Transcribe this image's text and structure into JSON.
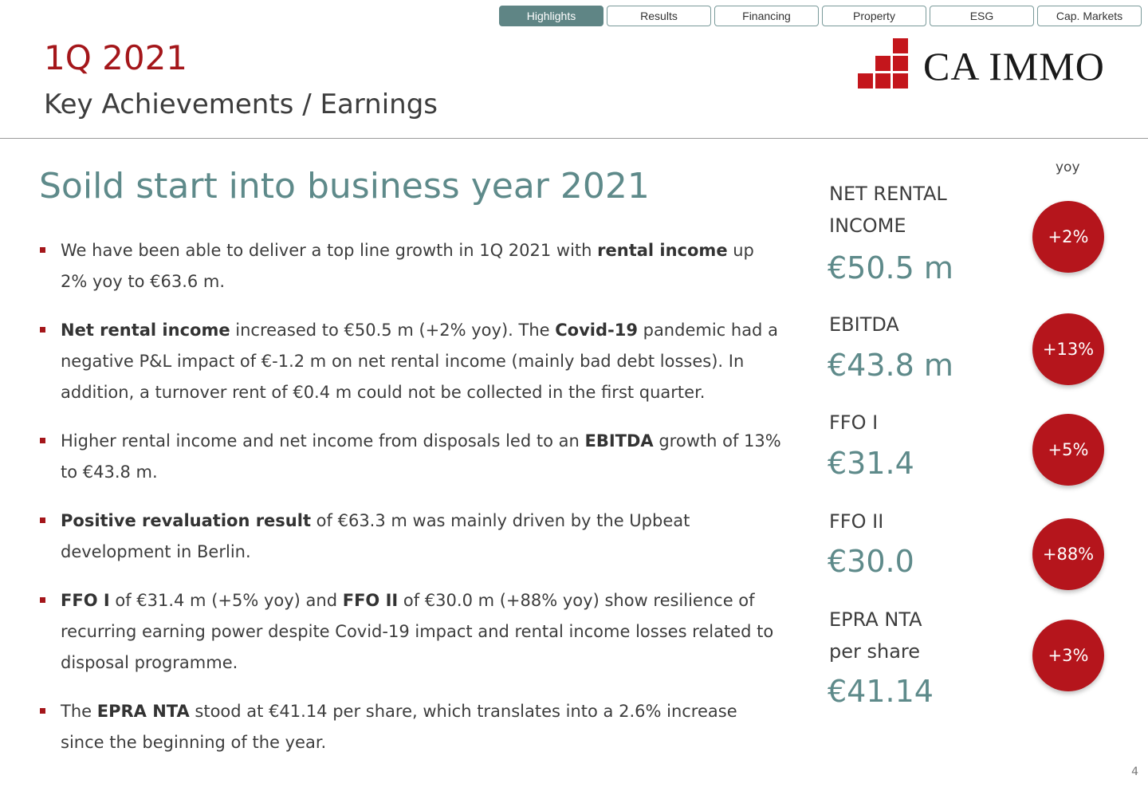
{
  "nav": {
    "tabs": [
      "Highlights",
      "Results",
      "Financing",
      "Property",
      "ESG",
      "Cap. Markets"
    ],
    "active": "Highlights"
  },
  "header": {
    "year": "1Q 2021",
    "subtitle": "Key Achievements / Earnings",
    "logo_text": "CA IMMO"
  },
  "headline": "Soild start into business year 2021",
  "bullets": [
    [
      {
        "t": "We have been able to deliver a top line growth in 1Q 2021 with "
      },
      {
        "t": "rental income",
        "b": true
      },
      {
        "t": " up 2% yoy to €63.6 m."
      }
    ],
    [
      {
        "t": "Net rental income",
        "b": true
      },
      {
        "t": " increased to €50.5 m (+2% yoy). The "
      },
      {
        "t": "Covid-19",
        "b": true
      },
      {
        "t": " pandemic had a negative P&L impact of €-1.2 m on net rental income (mainly bad debt losses). In addition, a turnover rent of €0.4 m could not be collected in the first quarter."
      }
    ],
    [
      {
        "t": "Higher rental income and net income from disposals led to an "
      },
      {
        "t": "EBITDA",
        "b": true
      },
      {
        "t": " growth of 13% to €43.8 m."
      }
    ],
    [
      {
        "t": "Positive revaluation result",
        "b": true
      },
      {
        "t": " of €63.3 m was mainly driven by the Upbeat development in Berlin."
      }
    ],
    [
      {
        "t": "FFO I",
        "b": true
      },
      {
        "t": " of €31.4 m (+5% yoy) and "
      },
      {
        "t": "FFO II",
        "b": true
      },
      {
        "t": " of €30.0 m (+88% yoy) show resilience of recurring earning power despite Covid-19 impact and rental income losses related to disposal programme."
      }
    ],
    [
      {
        "t": "The "
      },
      {
        "t": "EPRA NTA",
        "b": true
      },
      {
        "t": " stood at €41.14 per share, which translates into a 2.6% increase since the beginning of the year."
      }
    ]
  ],
  "kpis": {
    "yoy_label": "yoy",
    "items": [
      {
        "label_1": "NET RENTAL",
        "label_2": "INCOME",
        "value": "€50.5 m",
        "change": "+2%"
      },
      {
        "label_1": "EBITDA",
        "label_2": "",
        "value": "€43.8 m",
        "change": "+13%"
      },
      {
        "label_1": "FFO I",
        "label_2": "",
        "value": "€31.4",
        "change": "+5%"
      },
      {
        "label_1": "FFO II",
        "label_2": "",
        "value": "€30.0",
        "change": "+88%"
      },
      {
        "label_1": "EPRA NTA",
        "label_2": "per share",
        "value": "€41.14",
        "change": "+3%"
      }
    ]
  },
  "page_number": "4",
  "colors": {
    "brand_red": "#a4161a",
    "badge_red": "#b5151c",
    "teal": "#5e8a8a",
    "tab_active": "#5f8585"
  }
}
